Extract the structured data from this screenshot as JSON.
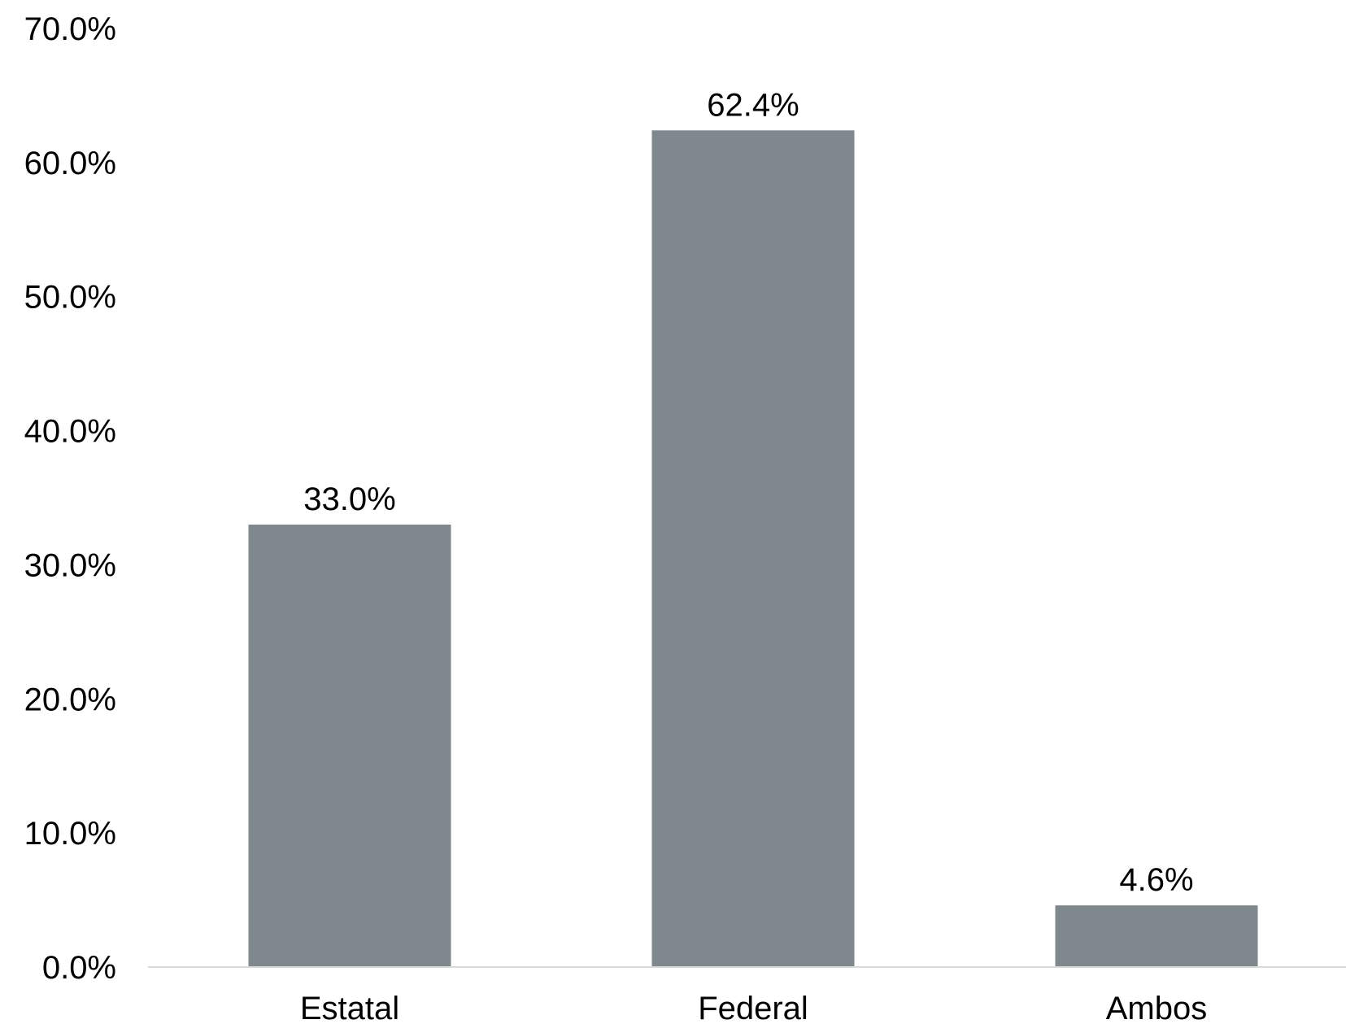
{
  "chart_data": {
    "type": "bar",
    "categories": [
      "Estatal",
      "Federal",
      "Ambos"
    ],
    "values": [
      33.0,
      62.4,
      4.6
    ],
    "data_labels": [
      "33.0%",
      "62.4%",
      "4.6%"
    ],
    "yticks": [
      0,
      10,
      20,
      30,
      40,
      50,
      60,
      70
    ],
    "ytick_labels": [
      "0.0%",
      "10.0%",
      "20.0%",
      "30.0%",
      "40.0%",
      "50.0%",
      "60.0%",
      "70.0%"
    ],
    "ylim": [
      0,
      70
    ],
    "grid": false,
    "legend": "none",
    "title": "",
    "xlabel": "",
    "ylabel": "",
    "bar_color": "#7f888d",
    "axis_color": "#d9d9d9"
  }
}
